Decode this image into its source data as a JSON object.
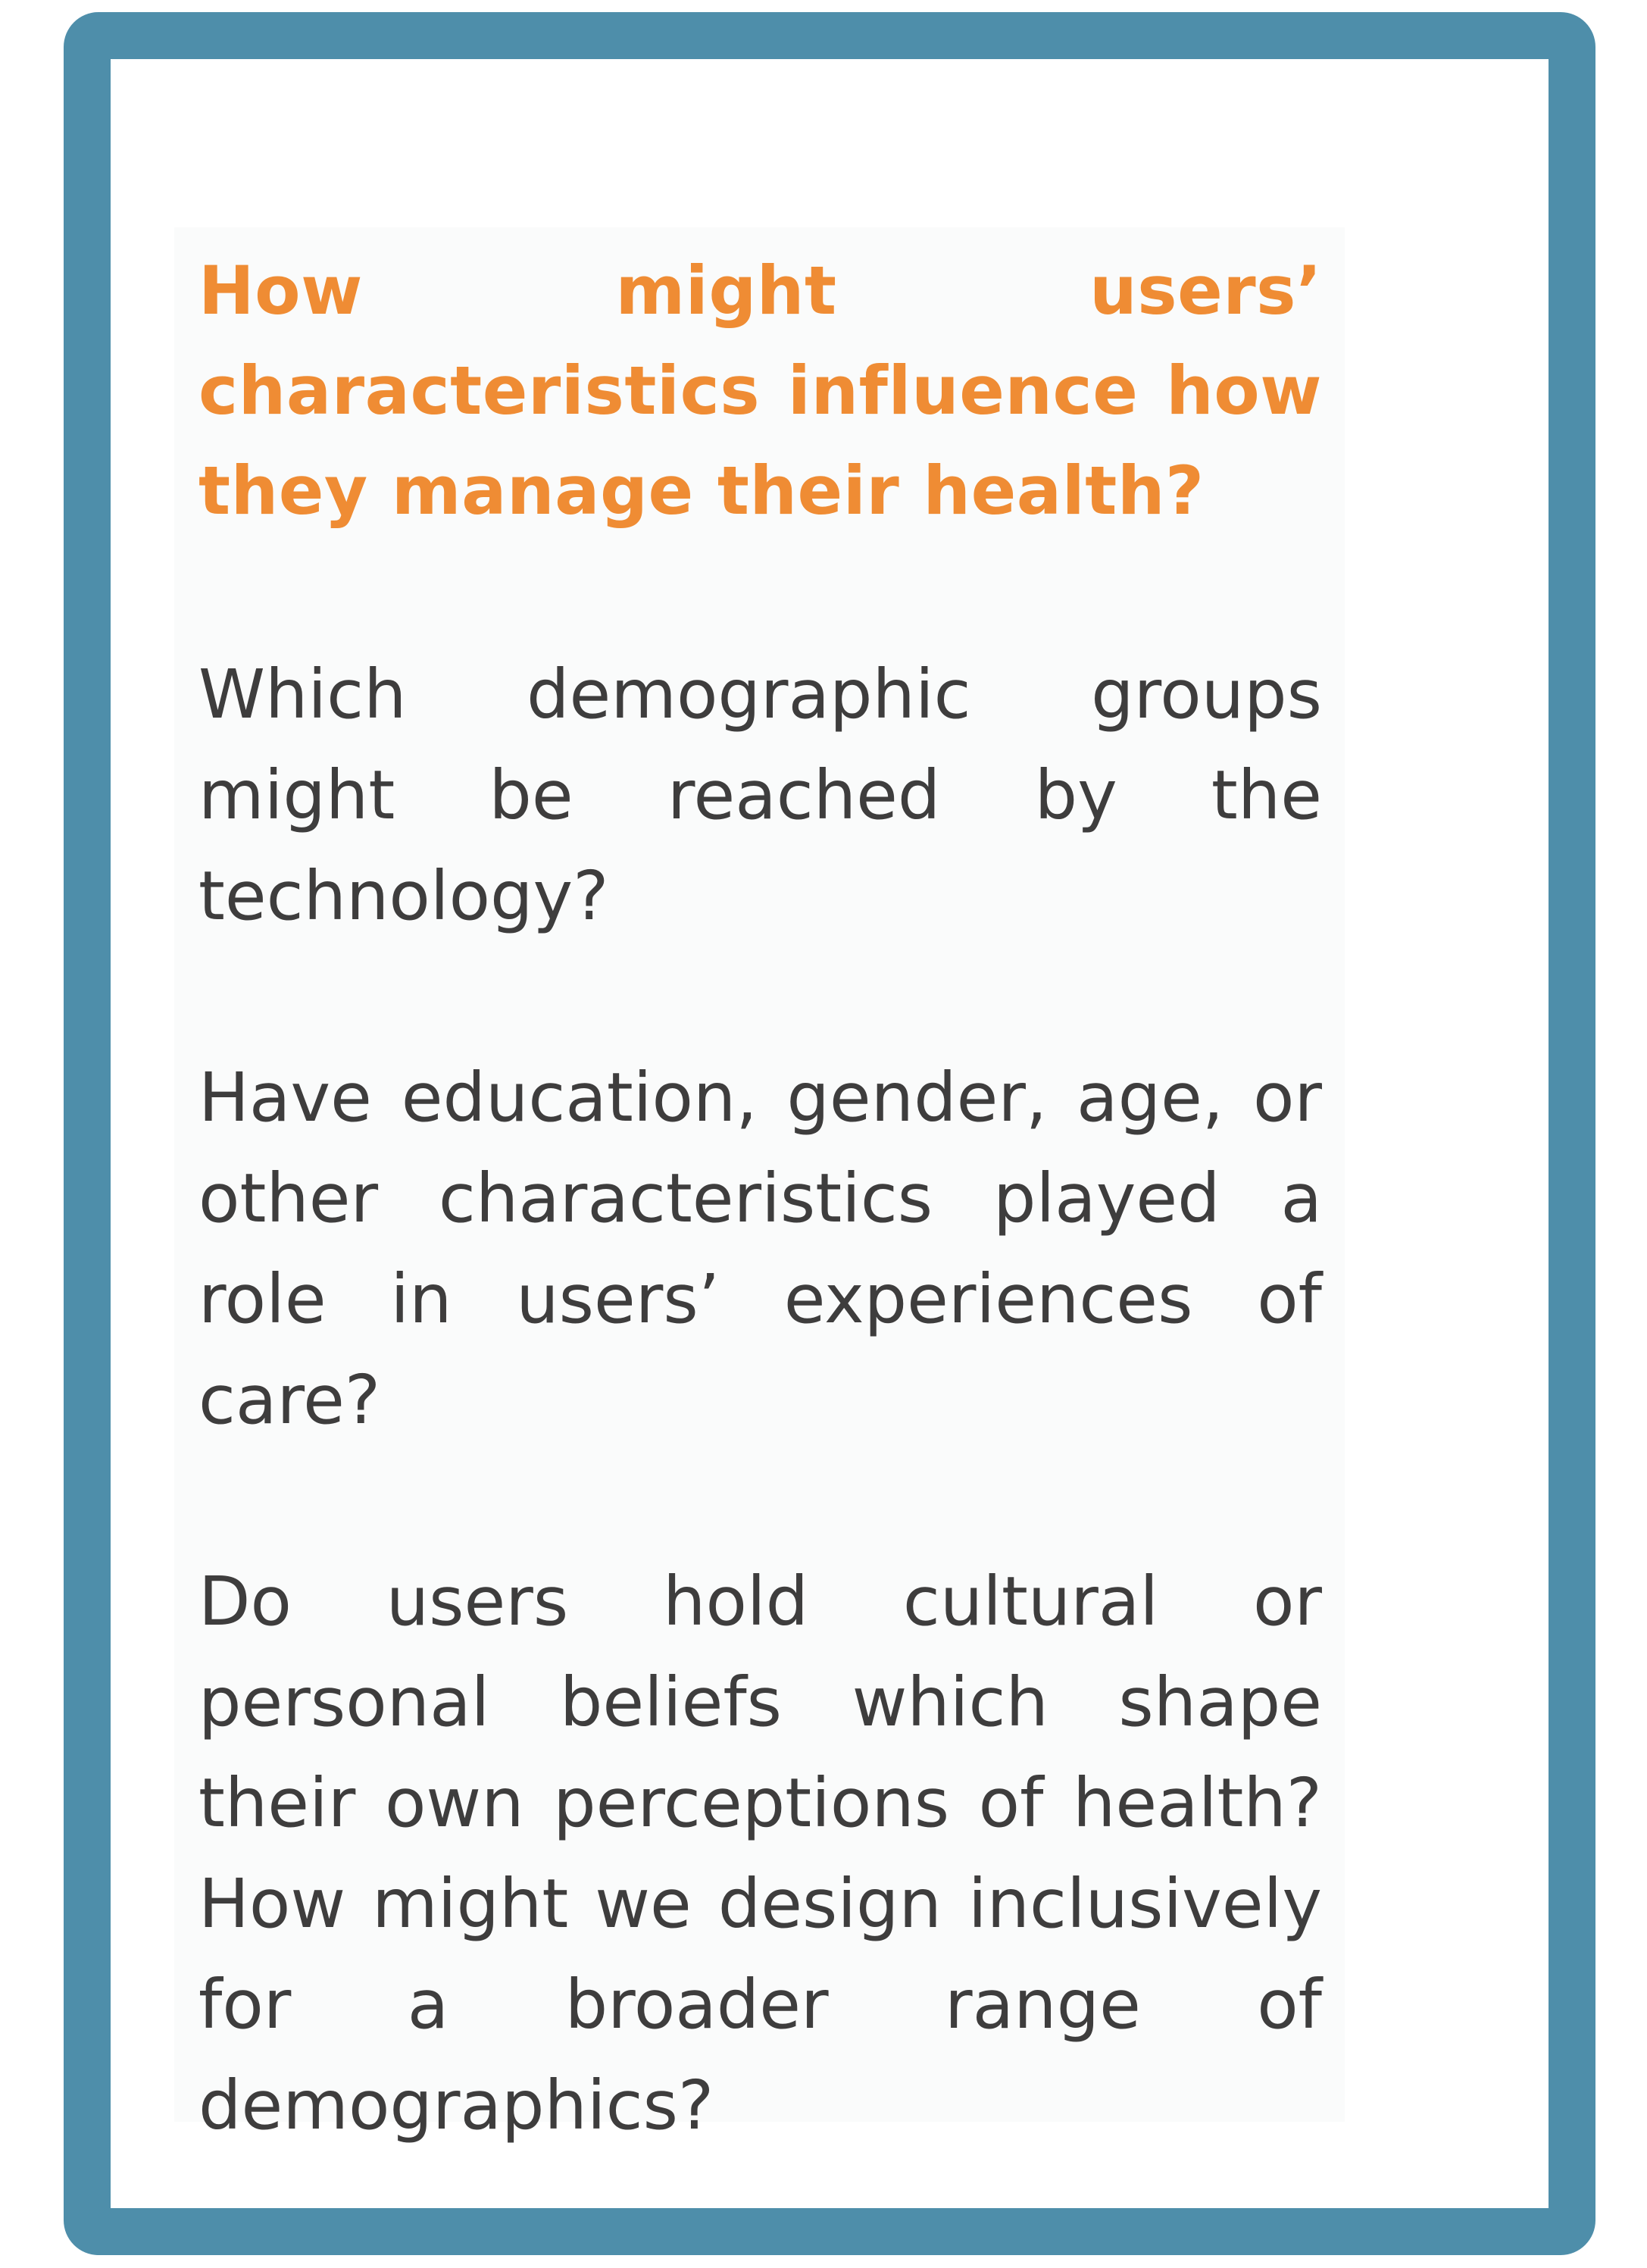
{
  "card": {
    "frame_color": "#4e8eaa",
    "heading": "How might users’ characteristics influence how they manage their health?",
    "heading_color": "#ef8c34",
    "text_color": "#3e3d3d",
    "paragraphs": [
      "Which demographic groups might be reached by the technology?",
      "Have education, gender, age, or other characteristics played a role in users’ experiences of care?",
      "Do users hold cultural or personal beliefs which shape their own perceptions of health? How might we design inclusively for a broader range of demographics?"
    ]
  }
}
